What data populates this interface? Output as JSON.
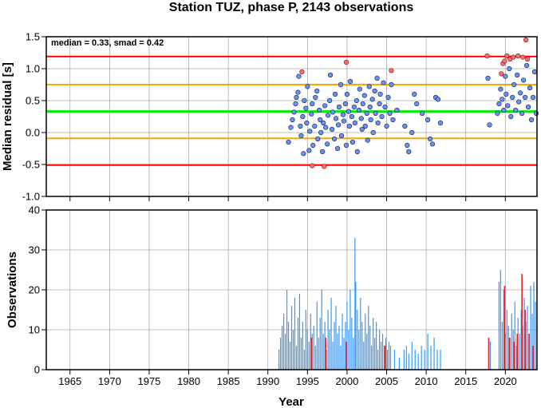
{
  "title": "Station TUZ, phase P, 2143 observations",
  "chart_data": [
    {
      "type": "scatter",
      "ylabel": "Median residual [s]",
      "ylim": [
        -1.0,
        1.5
      ],
      "yticks": [
        "-1.0",
        "-0.5",
        "0.0",
        "0.5",
        "1.0",
        "1.5"
      ],
      "xlim": [
        1962,
        2024
      ],
      "grid": true,
      "annotation": "median = 0.33, smad = 0.42",
      "reference_lines": [
        {
          "y": 1.19,
          "color": "#ff0000"
        },
        {
          "y": 0.75,
          "color": "#ffa500"
        },
        {
          "y": 0.33,
          "color": "#00ee00"
        },
        {
          "y": -0.09,
          "color": "#ffa500"
        },
        {
          "y": -0.51,
          "color": "#ff0000"
        }
      ],
      "colors": {
        "inlier": "#6495ed",
        "outlier": "#ff6a6a"
      },
      "points": [
        [
          1992.6,
          -0.15
        ],
        [
          1992.9,
          0.08
        ],
        [
          1993.1,
          0.2
        ],
        [
          1993.3,
          0.32
        ],
        [
          1993.5,
          0.45
        ],
        [
          1993.6,
          0.55
        ],
        [
          1993.8,
          0.63
        ],
        [
          1993.9,
          0.88
        ],
        [
          1994.1,
          0.1
        ],
        [
          1994.2,
          -0.05
        ],
        [
          1994.4,
          0.25
        ],
        [
          1994.5,
          -0.33
        ],
        [
          1994.6,
          0.5
        ],
        [
          1994.8,
          0.38
        ],
        [
          1994.9,
          0.15
        ],
        [
          1995.0,
          0.72
        ],
        [
          1995.2,
          -0.28
        ],
        [
          1995.3,
          0.02
        ],
        [
          1995.5,
          0.29
        ],
        [
          1995.6,
          0.45
        ],
        [
          1995.7,
          -0.2
        ],
        [
          1995.9,
          0.1
        ],
        [
          1996.0,
          0.55
        ],
        [
          1996.2,
          0.65
        ],
        [
          1996.3,
          -0.1
        ],
        [
          1996.5,
          0.35
        ],
        [
          1996.6,
          0.2
        ],
        [
          1996.7,
          0.0
        ],
        [
          1996.9,
          -0.3
        ],
        [
          1997.0,
          0.15
        ],
        [
          1997.2,
          0.42
        ],
        [
          1997.3,
          0.08
        ],
        [
          1997.5,
          -0.18
        ],
        [
          1997.6,
          0.27
        ],
        [
          1997.8,
          0.5
        ],
        [
          1997.9,
          0.9
        ],
        [
          1998.1,
          0.05
        ],
        [
          1998.2,
          0.32
        ],
        [
          1998.4,
          -0.1
        ],
        [
          1998.5,
          0.6
        ],
        [
          1998.6,
          0.22
        ],
        [
          1998.8,
          -0.25
        ],
        [
          1998.9,
          0.12
        ],
        [
          1999.0,
          0.4
        ],
        [
          1999.2,
          0.75
        ],
        [
          1999.3,
          -0.05
        ],
        [
          1999.5,
          0.28
        ],
        [
          1999.6,
          0.18
        ],
        [
          1999.8,
          0.45
        ],
        [
          1999.9,
          -0.2
        ],
        [
          2000.0,
          0.6
        ],
        [
          2000.2,
          0.33
        ],
        [
          2000.3,
          0.1
        ],
        [
          2000.4,
          0.8
        ],
        [
          2000.6,
          0.25
        ],
        [
          2000.7,
          -0.15
        ],
        [
          2000.9,
          0.4
        ],
        [
          2001.0,
          0.15
        ],
        [
          2001.2,
          0.5
        ],
        [
          2001.3,
          -0.3
        ],
        [
          2001.5,
          0.35
        ],
        [
          2001.6,
          0.68
        ],
        [
          2001.8,
          0.22
        ],
        [
          2001.9,
          0.05
        ],
        [
          2002.0,
          0.45
        ],
        [
          2002.2,
          0.58
        ],
        [
          2002.3,
          0.1
        ],
        [
          2002.5,
          0.3
        ],
        [
          2002.6,
          -0.12
        ],
        [
          2002.8,
          0.72
        ],
        [
          2002.9,
          0.4
        ],
        [
          2003.0,
          0.2
        ],
        [
          2003.2,
          0.52
        ],
        [
          2003.3,
          0.0
        ],
        [
          2003.5,
          0.65
        ],
        [
          2003.6,
          0.3
        ],
        [
          2003.8,
          0.85
        ],
        [
          2003.9,
          0.15
        ],
        [
          2004.1,
          0.45
        ],
        [
          2004.2,
          0.6
        ],
        [
          2004.4,
          0.25
        ],
        [
          2004.6,
          0.78
        ],
        [
          2004.8,
          0.4
        ],
        [
          2005.0,
          0.1
        ],
        [
          2005.2,
          0.55
        ],
        [
          2005.4,
          0.3
        ],
        [
          2005.6,
          0.75
        ],
        [
          2005.8,
          0.2
        ],
        [
          2006.3,
          0.35
        ],
        [
          2007.3,
          0.1
        ],
        [
          2007.6,
          -0.2
        ],
        [
          2007.8,
          -0.3
        ],
        [
          2008.2,
          0.0
        ],
        [
          2008.5,
          0.6
        ],
        [
          2008.8,
          0.45
        ],
        [
          2009.5,
          0.3
        ],
        [
          2010.2,
          0.2
        ],
        [
          2010.5,
          -0.1
        ],
        [
          2010.8,
          -0.18
        ],
        [
          2011.2,
          0.55
        ],
        [
          2011.5,
          0.52
        ],
        [
          2011.8,
          0.15
        ],
        [
          2017.8,
          0.85
        ],
        [
          2018.0,
          0.12
        ],
        [
          2019.0,
          0.3
        ],
        [
          2019.2,
          0.45
        ],
        [
          2019.4,
          0.68
        ],
        [
          2019.6,
          0.52
        ],
        [
          2019.8,
          0.35
        ],
        [
          2020.0,
          0.88
        ],
        [
          2020.1,
          0.6
        ],
        [
          2020.3,
          0.42
        ],
        [
          2020.5,
          1.0
        ],
        [
          2020.7,
          0.25
        ],
        [
          2020.9,
          0.55
        ],
        [
          2021.1,
          0.75
        ],
        [
          2021.3,
          0.35
        ],
        [
          2021.5,
          0.9
        ],
        [
          2021.7,
          0.48
        ],
        [
          2021.9,
          0.62
        ],
        [
          2022.1,
          0.3
        ],
        [
          2022.3,
          0.82
        ],
        [
          2022.5,
          0.55
        ],
        [
          2022.7,
          1.05
        ],
        [
          2022.9,
          0.4
        ],
        [
          2023.1,
          0.7
        ],
        [
          2023.3,
          0.2
        ],
        [
          2023.5,
          0.55
        ],
        [
          2023.7,
          0.95
        ],
        [
          2023.9,
          0.3
        ]
      ],
      "outlier_points": [
        [
          1995.6,
          -0.52
        ],
        [
          1997.1,
          -0.53
        ],
        [
          1999.9,
          1.1
        ],
        [
          1994.3,
          0.95
        ],
        [
          2005.6,
          0.97
        ],
        [
          2017.7,
          1.2
        ],
        [
          2019.5,
          0.92
        ],
        [
          2019.7,
          1.08
        ],
        [
          2019.9,
          1.12
        ],
        [
          2020.2,
          1.2
        ],
        [
          2020.6,
          1.15
        ],
        [
          2021.0,
          1.18
        ],
        [
          2021.6,
          1.2
        ],
        [
          2022.2,
          1.18
        ],
        [
          2022.6,
          1.45
        ],
        [
          2022.8,
          1.15
        ]
      ]
    },
    {
      "type": "bar",
      "ylabel": "Observations",
      "xlabel": "Year",
      "ylim": [
        0,
        40
      ],
      "yticks": [
        "0",
        "10",
        "20",
        "30",
        "40"
      ],
      "xlim": [
        1962,
        2024
      ],
      "xticks": [
        "1965",
        "1970",
        "1975",
        "1980",
        "1985",
        "1990",
        "1995",
        "2000",
        "2005",
        "2010",
        "2015",
        "2020"
      ],
      "grid": true,
      "colors": {
        "inlier": "#3399ff",
        "outlier": "#ee2222"
      },
      "bars": [
        [
          1991.4,
          5
        ],
        [
          1991.6,
          8
        ],
        [
          1991.8,
          11
        ],
        [
          1992.0,
          14
        ],
        [
          1992.2,
          9
        ],
        [
          1992.4,
          20
        ],
        [
          1992.6,
          12
        ],
        [
          1992.8,
          7
        ],
        [
          1993.0,
          16
        ],
        [
          1993.2,
          10
        ],
        [
          1993.4,
          18
        ],
        [
          1993.6,
          6
        ],
        [
          1993.8,
          13
        ],
        [
          1994.0,
          19
        ],
        [
          1994.2,
          8
        ],
        [
          1994.4,
          12
        ],
        [
          1994.6,
          5
        ],
        [
          1994.8,
          15
        ],
        [
          1995.0,
          10
        ],
        [
          1995.2,
          7
        ],
        [
          1995.4,
          14
        ],
        [
          1995.6,
          9
        ],
        [
          1995.8,
          11
        ],
        [
          1996.0,
          6
        ],
        [
          1996.2,
          17
        ],
        [
          1996.4,
          8
        ],
        [
          1996.6,
          13
        ],
        [
          1996.8,
          20
        ],
        [
          1997.0,
          9
        ],
        [
          1997.2,
          12
        ],
        [
          1997.4,
          5
        ],
        [
          1997.6,
          15
        ],
        [
          1997.8,
          10
        ],
        [
          1998.0,
          18
        ],
        [
          1998.2,
          7
        ],
        [
          1998.4,
          12
        ],
        [
          1998.6,
          16
        ],
        [
          1998.8,
          9
        ],
        [
          1999.0,
          11
        ],
        [
          1999.2,
          6
        ],
        [
          1999.4,
          14
        ],
        [
          1999.6,
          8
        ],
        [
          1999.8,
          12
        ],
        [
          2000.0,
          17
        ],
        [
          2000.2,
          10
        ],
        [
          2000.4,
          20
        ],
        [
          2000.6,
          13
        ],
        [
          2000.8,
          8
        ],
        [
          2001.0,
          33
        ],
        [
          2001.1,
          22
        ],
        [
          2001.3,
          15
        ],
        [
          2001.5,
          10
        ],
        [
          2001.7,
          18
        ],
        [
          2001.9,
          12
        ],
        [
          2002.1,
          7
        ],
        [
          2002.3,
          14
        ],
        [
          2002.5,
          9
        ],
        [
          2002.7,
          16
        ],
        [
          2002.9,
          11
        ],
        [
          2003.1,
          6
        ],
        [
          2003.3,
          13
        ],
        [
          2003.5,
          8
        ],
        [
          2003.7,
          12
        ],
        [
          2003.9,
          5
        ],
        [
          2004.1,
          10
        ],
        [
          2004.3,
          7
        ],
        [
          2004.5,
          9
        ],
        [
          2004.7,
          6
        ],
        [
          2004.9,
          8
        ],
        [
          2005.1,
          5
        ],
        [
          2005.3,
          7
        ],
        [
          2005.5,
          6
        ],
        [
          2006.0,
          5
        ],
        [
          2006.6,
          3
        ],
        [
          2007.2,
          5
        ],
        [
          2007.5,
          6
        ],
        [
          2007.8,
          4
        ],
        [
          2008.2,
          7
        ],
        [
          2008.6,
          5
        ],
        [
          2009.0,
          4
        ],
        [
          2009.4,
          6
        ],
        [
          2009.8,
          5
        ],
        [
          2010.2,
          9
        ],
        [
          2010.6,
          6
        ],
        [
          2011.0,
          8
        ],
        [
          2011.4,
          5
        ],
        [
          2011.8,
          5
        ],
        [
          2017.9,
          6
        ],
        [
          2018.1,
          7
        ],
        [
          2019.2,
          22
        ],
        [
          2019.4,
          25
        ],
        [
          2019.6,
          12
        ],
        [
          2019.8,
          20
        ],
        [
          2020.0,
          9
        ],
        [
          2020.2,
          15
        ],
        [
          2020.4,
          11
        ],
        [
          2020.6,
          8
        ],
        [
          2020.8,
          14
        ],
        [
          2021.0,
          10
        ],
        [
          2021.2,
          17
        ],
        [
          2021.4,
          6
        ],
        [
          2021.6,
          13
        ],
        [
          2021.8,
          9
        ],
        [
          2022.0,
          15
        ],
        [
          2022.2,
          11
        ],
        [
          2022.4,
          18
        ],
        [
          2022.6,
          12
        ],
        [
          2022.8,
          16
        ],
        [
          2023.0,
          9
        ],
        [
          2023.2,
          21
        ],
        [
          2023.4,
          14
        ],
        [
          2023.6,
          22
        ],
        [
          2023.8,
          17
        ]
      ],
      "outlier_bars": [
        [
          1995.5,
          8
        ],
        [
          1997.3,
          8
        ],
        [
          1999.9,
          7
        ],
        [
          2004.8,
          6
        ],
        [
          2017.9,
          8
        ],
        [
          2019.9,
          21
        ],
        [
          2020.5,
          8
        ],
        [
          2021.1,
          7
        ],
        [
          2021.5,
          9
        ],
        [
          2022.1,
          24
        ],
        [
          2022.5,
          15
        ],
        [
          2023.0,
          9
        ],
        [
          2023.5,
          6
        ]
      ]
    }
  ]
}
